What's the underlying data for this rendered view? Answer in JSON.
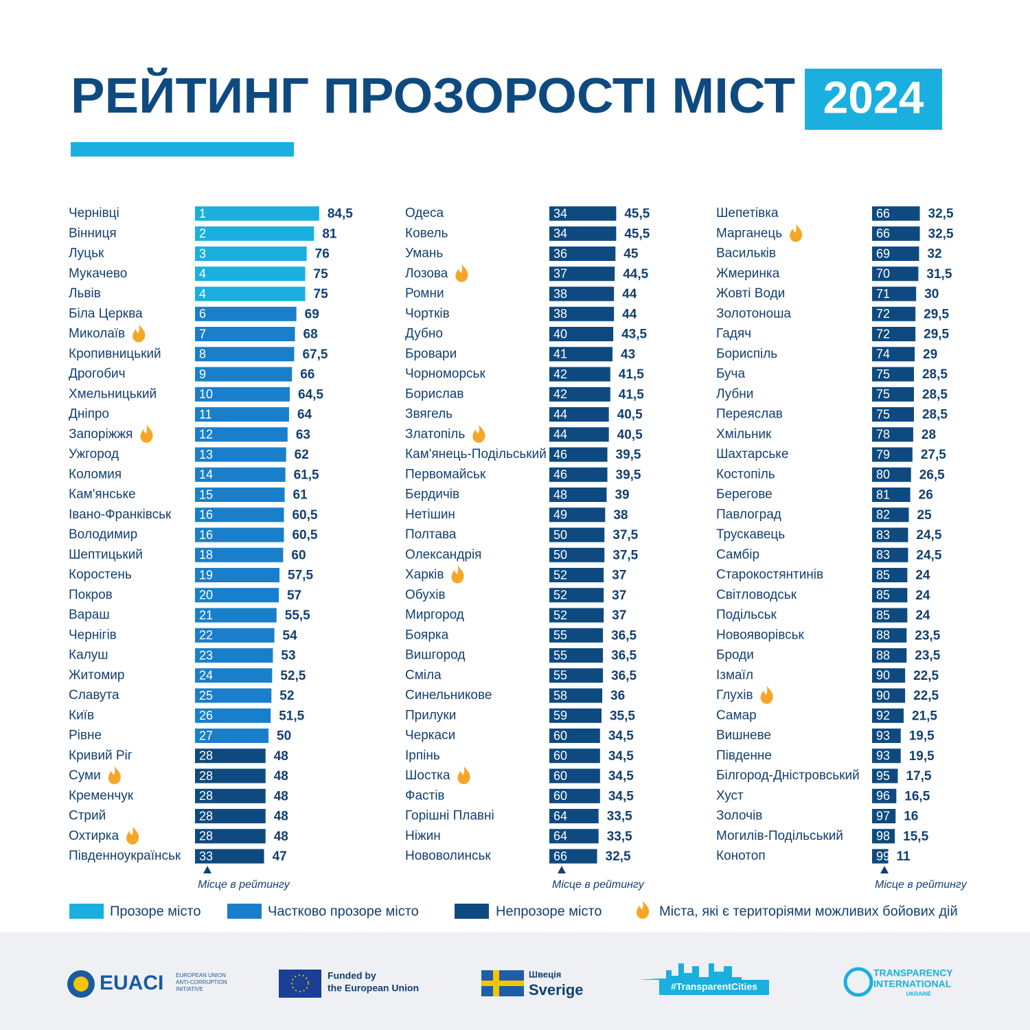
{
  "title": "РЕЙТИНГ ПРОЗОРОСТІ МІСТ",
  "year": "2024",
  "chart_data": {
    "type": "bar",
    "categories": [
      "Чернівці",
      "Вінниця",
      "Луцьк",
      "Мукачево",
      "Львів",
      "Біла Церква",
      "Миколаїв",
      "Кропивницький",
      "Дрогобич",
      "Хмельницький",
      "Дніпро",
      "Запоріжжя",
      "Ужгород",
      "Коломия",
      "Кам'янське",
      "Івано-Франківськ",
      "Володимир",
      "Шептицький",
      "Коростень",
      "Покров",
      "Вараш",
      "Чернігів",
      "Калуш",
      "Житомир",
      "Славута",
      "Київ",
      "Рівне",
      "Кривий Ріг",
      "Суми",
      "Кременчук",
      "Стрий",
      "Охтирка",
      "Південноукраїнськ",
      "Одеса",
      "Ковель",
      "Умань",
      "Лозова",
      "Ромни",
      "Чортків",
      "Дубно",
      "Бровари",
      "Чорноморськ",
      "Борислав",
      "Звягель",
      "Златопіль",
      "Кам'янець-Подільський",
      "Первомайськ",
      "Бердичів",
      "Нетішин",
      "Полтава",
      "Олександрія",
      "Харків",
      "Обухів",
      "Миргород",
      "Боярка",
      "Вишгород",
      "Сміла",
      "Синельникове",
      "Прилуки",
      "Черкаси",
      "Ірпінь",
      "Шостка",
      "Фастів",
      "Горішні Плавні",
      "Ніжин",
      "Нововолинськ",
      "Шепетівка",
      "Марганець",
      "Васильків",
      "Жмеринка",
      "Жовті Води",
      "Золотоноша",
      "Гадяч",
      "Бориспіль",
      "Буча",
      "Лубни",
      "Переяслав",
      "Хмільник",
      "Шахтарське",
      "Костопіль",
      "Берегове",
      "Павлоград",
      "Трускавець",
      "Самбір",
      "Старокостянтинів",
      "Світловодськ",
      "Подільськ",
      "Новояворівськ",
      "Броди",
      "Ізмаїл",
      "Глухів",
      "Самар",
      "Вишневе",
      "Південне",
      "Білгород-Дністровський",
      "Хуст",
      "Золочів",
      "Могилів-Подільський",
      "Конотоп"
    ],
    "ranks": [
      1,
      2,
      3,
      4,
      4,
      6,
      7,
      8,
      9,
      10,
      11,
      12,
      13,
      14,
      15,
      16,
      16,
      18,
      19,
      20,
      21,
      22,
      23,
      24,
      25,
      26,
      27,
      28,
      28,
      28,
      28,
      28,
      33,
      34,
      34,
      36,
      37,
      38,
      38,
      40,
      41,
      42,
      42,
      44,
      44,
      46,
      46,
      48,
      49,
      50,
      50,
      52,
      52,
      52,
      55,
      55,
      55,
      58,
      59,
      60,
      60,
      60,
      60,
      64,
      64,
      66,
      66,
      66,
      69,
      70,
      71,
      72,
      72,
      74,
      75,
      75,
      75,
      78,
      79,
      80,
      81,
      82,
      83,
      83,
      85,
      85,
      85,
      88,
      88,
      90,
      90,
      92,
      93,
      93,
      95,
      96,
      97,
      98,
      99
    ],
    "values": [
      84.5,
      81,
      76,
      75,
      75,
      69,
      68,
      67.5,
      66,
      64.5,
      64,
      63,
      62,
      61.5,
      61,
      60.5,
      60.5,
      60,
      57.5,
      57,
      55.5,
      54,
      53,
      52.5,
      52,
      51.5,
      50,
      48,
      48,
      48,
      48,
      48,
      47,
      45.5,
      45.5,
      45,
      44.5,
      44,
      44,
      43.5,
      43,
      41.5,
      41.5,
      40.5,
      40.5,
      39.5,
      39.5,
      39,
      38,
      37.5,
      37.5,
      37,
      37,
      37,
      36.5,
      36.5,
      36.5,
      36,
      35.5,
      34.5,
      34.5,
      34.5,
      34.5,
      33.5,
      33.5,
      32.5,
      32.5,
      32.5,
      32,
      31.5,
      30,
      29.5,
      29.5,
      29,
      28.5,
      28.5,
      28.5,
      28,
      27.5,
      26.5,
      26,
      25,
      24.5,
      24.5,
      24,
      24,
      24,
      23.5,
      23.5,
      22.5,
      22.5,
      21.5,
      19.5,
      19.5,
      17.5,
      16.5,
      16,
      15.5,
      11
    ],
    "value_labels": [
      "84,5",
      "81",
      "76",
      "75",
      "75",
      "69",
      "68",
      "67,5",
      "66",
      "64,5",
      "64",
      "63",
      "62",
      "61,5",
      "61",
      "60,5",
      "60,5",
      "60",
      "57,5",
      "57",
      "55,5",
      "54",
      "53",
      "52,5",
      "52",
      "51,5",
      "50",
      "48",
      "48",
      "48",
      "48",
      "48",
      "47",
      "45,5",
      "45,5",
      "45",
      "44,5",
      "44",
      "44",
      "43,5",
      "43",
      "41,5",
      "41,5",
      "40,5",
      "40,5",
      "39,5",
      "39,5",
      "39",
      "38",
      "37,5",
      "37,5",
      "37",
      "37",
      "37",
      "36,5",
      "36,5",
      "36,5",
      "36",
      "35,5",
      "34,5",
      "34,5",
      "34,5",
      "34,5",
      "33,5",
      "33,5",
      "32,5",
      "32,5",
      "32,5",
      "32",
      "31,5",
      "30",
      "29,5",
      "29,5",
      "29",
      "28,5",
      "28,5",
      "28,5",
      "28",
      "27,5",
      "26,5",
      "26",
      "25",
      "24,5",
      "24,5",
      "24",
      "24",
      "24",
      "23,5",
      "23,5",
      "22,5",
      "22,5",
      "21,5",
      "19,5",
      "19,5",
      "17,5",
      "16,5",
      "16",
      "15,5",
      "11"
    ],
    "status": [
      0,
      0,
      0,
      0,
      0,
      1,
      1,
      1,
      1,
      1,
      1,
      1,
      1,
      1,
      1,
      1,
      1,
      1,
      1,
      1,
      1,
      1,
      1,
      1,
      1,
      1,
      1,
      2,
      2,
      2,
      2,
      2,
      2,
      2,
      2,
      2,
      2,
      2,
      2,
      2,
      2,
      2,
      2,
      2,
      2,
      2,
      2,
      2,
      2,
      2,
      2,
      2,
      2,
      2,
      2,
      2,
      2,
      2,
      2,
      2,
      2,
      2,
      2,
      2,
      2,
      2,
      2,
      2,
      2,
      2,
      2,
      2,
      2,
      2,
      2,
      2,
      2,
      2,
      2,
      2,
      2,
      2,
      2,
      2,
      2,
      2,
      2,
      2,
      2,
      2,
      2,
      2,
      2,
      2,
      2,
      2,
      2,
      2,
      2
    ],
    "combat": [
      0,
      0,
      0,
      0,
      0,
      0,
      1,
      0,
      0,
      0,
      0,
      1,
      0,
      0,
      0,
      0,
      0,
      0,
      0,
      0,
      0,
      0,
      0,
      0,
      0,
      0,
      0,
      0,
      1,
      0,
      0,
      1,
      0,
      0,
      0,
      0,
      1,
      0,
      0,
      0,
      0,
      0,
      0,
      0,
      1,
      0,
      0,
      0,
      0,
      0,
      0,
      1,
      0,
      0,
      0,
      0,
      0,
      0,
      0,
      0,
      0,
      1,
      0,
      0,
      0,
      0,
      0,
      1,
      0,
      0,
      0,
      0,
      0,
      0,
      0,
      0,
      0,
      0,
      0,
      0,
      0,
      0,
      0,
      0,
      0,
      0,
      0,
      0,
      0,
      0,
      1,
      0,
      0,
      0,
      0,
      0,
      0,
      0,
      0
    ],
    "series": [
      {
        "name": "Прозоре місто",
        "color": "#1aafde"
      },
      {
        "name": "Частково прозоре місто",
        "color": "#1a7fcb"
      },
      {
        "name": "Непрозоре місто",
        "color": "#0e4a7f"
      }
    ],
    "combat_legend": "Міста, які є територіями можливих бойових дій",
    "combat_color": "#f6a627",
    "rank_label": "Місце в рейтингу"
  },
  "footer": {
    "euaci": "EUACI",
    "euaci_sub": [
      "EUROPEAN UNION",
      "ANTI-CORRUPTION",
      "INITIATIVE"
    ],
    "eu": [
      "Funded by",
      "the European Union"
    ],
    "sweden": [
      "Швеція",
      "Sverige"
    ],
    "cities": "#TransparentCities",
    "ti": [
      "TRANSPARENCY",
      "INTERNATIONAL",
      "UKRAINE"
    ]
  }
}
